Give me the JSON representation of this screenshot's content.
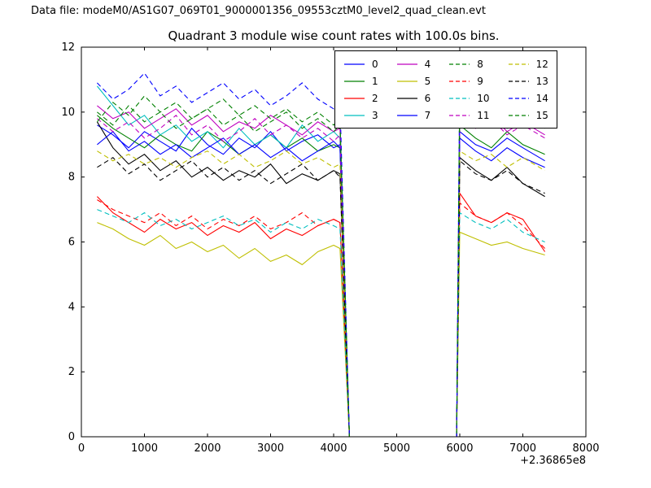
{
  "figure": {
    "data_file_label": "Data file: modeM0/AS1G07_069T01_9000001356_09553cztM0_level2_quad_clean.evt",
    "title": "Quadrant 3 module wise count rates with 100.0s bins.",
    "x_offset_label": "+2.36865e8"
  },
  "chart_data": {
    "type": "line",
    "title": "Quadrant 3 module wise count rates with 100.0s bins.",
    "xlabel": "",
    "ylabel": "",
    "xlim": [
      0,
      8000
    ],
    "ylim": [
      0,
      12
    ],
    "x_ticks": [
      0,
      1000,
      2000,
      3000,
      4000,
      5000,
      6000,
      7000,
      8000
    ],
    "y_ticks": [
      0,
      2,
      4,
      6,
      8,
      10,
      12
    ],
    "x_axis_offset": "+2.36865e8",
    "grid": false,
    "legend_position": "upper center-right, 4 columns",
    "note": "count rate vs time; all modules drop to 0 between ~4150 and ~5950 (data gap)",
    "x": [
      250,
      500,
      750,
      1000,
      1250,
      1500,
      1750,
      2000,
      2250,
      2500,
      2750,
      3000,
      3250,
      3500,
      3750,
      4000,
      4100,
      4250,
      4500,
      4750,
      5000,
      5250,
      5500,
      5750,
      5950,
      6000,
      6250,
      6500,
      6750,
      7000,
      7350
    ],
    "series": [
      {
        "label": "0",
        "color": "#0000ff",
        "dash": "solid",
        "values": [
          9.6,
          9.3,
          8.9,
          9.4,
          9.1,
          8.8,
          9.5,
          9.0,
          8.7,
          9.2,
          8.9,
          9.4,
          8.8,
          9.1,
          9.3,
          8.9,
          9.0,
          0,
          0,
          0,
          0,
          0,
          0,
          0,
          0,
          9.4,
          9.0,
          8.8,
          9.2,
          8.9,
          8.5
        ]
      },
      {
        "label": "1",
        "color": "#008000",
        "dash": "solid",
        "values": [
          9.9,
          9.5,
          9.2,
          8.9,
          9.3,
          9.0,
          8.8,
          9.4,
          9.1,
          8.7,
          9.0,
          9.3,
          8.9,
          9.2,
          8.8,
          9.0,
          8.9,
          0,
          0,
          0,
          0,
          0,
          0,
          0,
          0,
          9.6,
          9.2,
          8.9,
          9.4,
          9.0,
          8.7
        ]
      },
      {
        "label": "2",
        "color": "#ff0000",
        "dash": "solid",
        "values": [
          7.4,
          6.9,
          6.6,
          6.3,
          6.7,
          6.4,
          6.6,
          6.2,
          6.5,
          6.3,
          6.6,
          6.1,
          6.4,
          6.2,
          6.5,
          6.7,
          6.6,
          0,
          0,
          0,
          0,
          0,
          0,
          0,
          0,
          7.5,
          6.8,
          6.6,
          6.9,
          6.7,
          5.7
        ]
      },
      {
        "label": "3",
        "color": "#00bfbf",
        "dash": "solid",
        "values": [
          10.8,
          10.2,
          9.6,
          9.9,
          9.3,
          9.6,
          9.1,
          9.4,
          8.9,
          9.5,
          9.0,
          9.3,
          8.9,
          9.6,
          9.1,
          9.4,
          9.2,
          0,
          0,
          0,
          0,
          0,
          0,
          0,
          0,
          10.4,
          9.8,
          10.1,
          9.5,
          10.3,
          9.6
        ]
      },
      {
        "label": "4",
        "color": "#bf00bf",
        "dash": "solid",
        "values": [
          10.2,
          9.8,
          10.0,
          9.5,
          9.8,
          10.1,
          9.6,
          9.9,
          9.4,
          9.7,
          9.5,
          9.9,
          9.6,
          9.3,
          9.7,
          9.4,
          9.5,
          0,
          0,
          0,
          0,
          0,
          0,
          0,
          0,
          10.0,
          9.6,
          9.9,
          9.4,
          9.7,
          9.3
        ]
      },
      {
        "label": "5",
        "color": "#bfbf00",
        "dash": "solid",
        "values": [
          6.6,
          6.4,
          6.1,
          5.9,
          6.2,
          5.8,
          6.0,
          5.7,
          5.9,
          5.5,
          5.8,
          5.4,
          5.6,
          5.3,
          5.7,
          5.9,
          5.8,
          0,
          0,
          0,
          0,
          0,
          0,
          0,
          0,
          6.3,
          6.1,
          5.9,
          6.0,
          5.8,
          5.6
        ]
      },
      {
        "label": "6",
        "color": "#000000",
        "dash": "solid",
        "values": [
          9.7,
          8.9,
          8.4,
          8.7,
          8.2,
          8.5,
          8.0,
          8.3,
          7.9,
          8.2,
          8.0,
          8.4,
          7.8,
          8.1,
          7.9,
          8.2,
          8.1,
          0,
          0,
          0,
          0,
          0,
          0,
          0,
          0,
          8.6,
          8.2,
          7.9,
          8.3,
          7.8,
          7.4
        ]
      },
      {
        "label": "7",
        "color": "#0000ff",
        "dash": "solid",
        "values": [
          9.0,
          9.4,
          8.8,
          9.1,
          8.7,
          9.0,
          8.6,
          8.9,
          9.2,
          8.7,
          9.0,
          8.6,
          8.9,
          8.5,
          8.8,
          9.1,
          8.9,
          0,
          0,
          0,
          0,
          0,
          0,
          0,
          0,
          9.2,
          8.8,
          8.5,
          8.9,
          8.6,
          8.3
        ]
      },
      {
        "label": "8",
        "color": "#008000",
        "dash": "dashed",
        "values": [
          10.0,
          9.6,
          10.2,
          9.7,
          10.0,
          9.5,
          9.8,
          10.1,
          9.6,
          9.9,
          9.4,
          9.7,
          10.0,
          9.5,
          9.8,
          9.4,
          9.6,
          0,
          0,
          0,
          0,
          0,
          0,
          0,
          0,
          10.2,
          9.8,
          10.1,
          9.6,
          9.9,
          9.5
        ]
      },
      {
        "label": "9",
        "color": "#ff0000",
        "dash": "dashed",
        "values": [
          7.3,
          7.0,
          6.8,
          6.6,
          6.9,
          6.5,
          6.8,
          6.4,
          6.7,
          6.5,
          6.8,
          6.4,
          6.6,
          6.9,
          6.5,
          6.7,
          6.6,
          0,
          0,
          0,
          0,
          0,
          0,
          0,
          0,
          7.2,
          6.8,
          6.6,
          6.9,
          6.5,
          5.8
        ]
      },
      {
        "label": "10",
        "color": "#00bfbf",
        "dash": "dashed",
        "values": [
          7.0,
          6.8,
          6.6,
          6.9,
          6.5,
          6.7,
          6.4,
          6.6,
          6.8,
          6.5,
          6.7,
          6.3,
          6.6,
          6.4,
          6.7,
          6.5,
          6.4,
          0,
          0,
          0,
          0,
          0,
          0,
          0,
          0,
          6.9,
          6.6,
          6.4,
          6.7,
          6.3,
          6.0
        ]
      },
      {
        "label": "11",
        "color": "#bf00bf",
        "dash": "dashed",
        "values": [
          9.8,
          9.4,
          9.7,
          9.2,
          9.5,
          9.9,
          9.3,
          9.6,
          9.1,
          9.4,
          9.8,
          9.3,
          9.6,
          9.2,
          9.5,
          9.1,
          9.3,
          0,
          0,
          0,
          0,
          0,
          0,
          0,
          0,
          9.9,
          9.5,
          9.8,
          9.3,
          9.6,
          9.2
        ]
      },
      {
        "label": "12",
        "color": "#bfbf00",
        "dash": "dashed",
        "values": [
          8.8,
          8.5,
          8.7,
          8.4,
          8.6,
          8.3,
          8.6,
          8.8,
          8.4,
          8.7,
          8.3,
          8.5,
          8.8,
          8.4,
          8.6,
          8.3,
          8.4,
          0,
          0,
          0,
          0,
          0,
          0,
          0,
          0,
          8.8,
          8.5,
          8.7,
          8.3,
          8.6,
          8.2
        ]
      },
      {
        "label": "13",
        "color": "#000000",
        "dash": "dashed",
        "values": [
          8.3,
          8.6,
          8.1,
          8.4,
          7.9,
          8.2,
          8.5,
          8.0,
          8.3,
          7.9,
          8.2,
          7.8,
          8.1,
          8.4,
          7.9,
          8.2,
          8.0,
          0,
          0,
          0,
          0,
          0,
          0,
          0,
          0,
          8.5,
          8.1,
          7.9,
          8.2,
          7.8,
          7.5
        ]
      },
      {
        "label": "14",
        "color": "#0000ff",
        "dash": "dashed",
        "values": [
          10.9,
          10.4,
          10.7,
          11.2,
          10.5,
          10.8,
          10.3,
          10.6,
          10.9,
          10.4,
          10.7,
          10.2,
          10.5,
          10.9,
          10.4,
          10.1,
          10.3,
          0,
          0,
          0,
          0,
          0,
          0,
          0,
          0,
          11.2,
          10.6,
          10.9,
          10.3,
          10.6,
          9.9
        ]
      },
      {
        "label": "15",
        "color": "#008000",
        "dash": "dashed",
        "values": [
          9.7,
          10.3,
          9.9,
          10.5,
          10.0,
          10.3,
          9.8,
          10.1,
          10.4,
          9.9,
          10.2,
          9.8,
          10.1,
          9.7,
          10.0,
          9.6,
          9.8,
          0,
          0,
          0,
          0,
          0,
          0,
          0,
          0,
          10.9,
          10.3,
          10.6,
          10.0,
          10.4,
          9.8
        ]
      }
    ]
  }
}
